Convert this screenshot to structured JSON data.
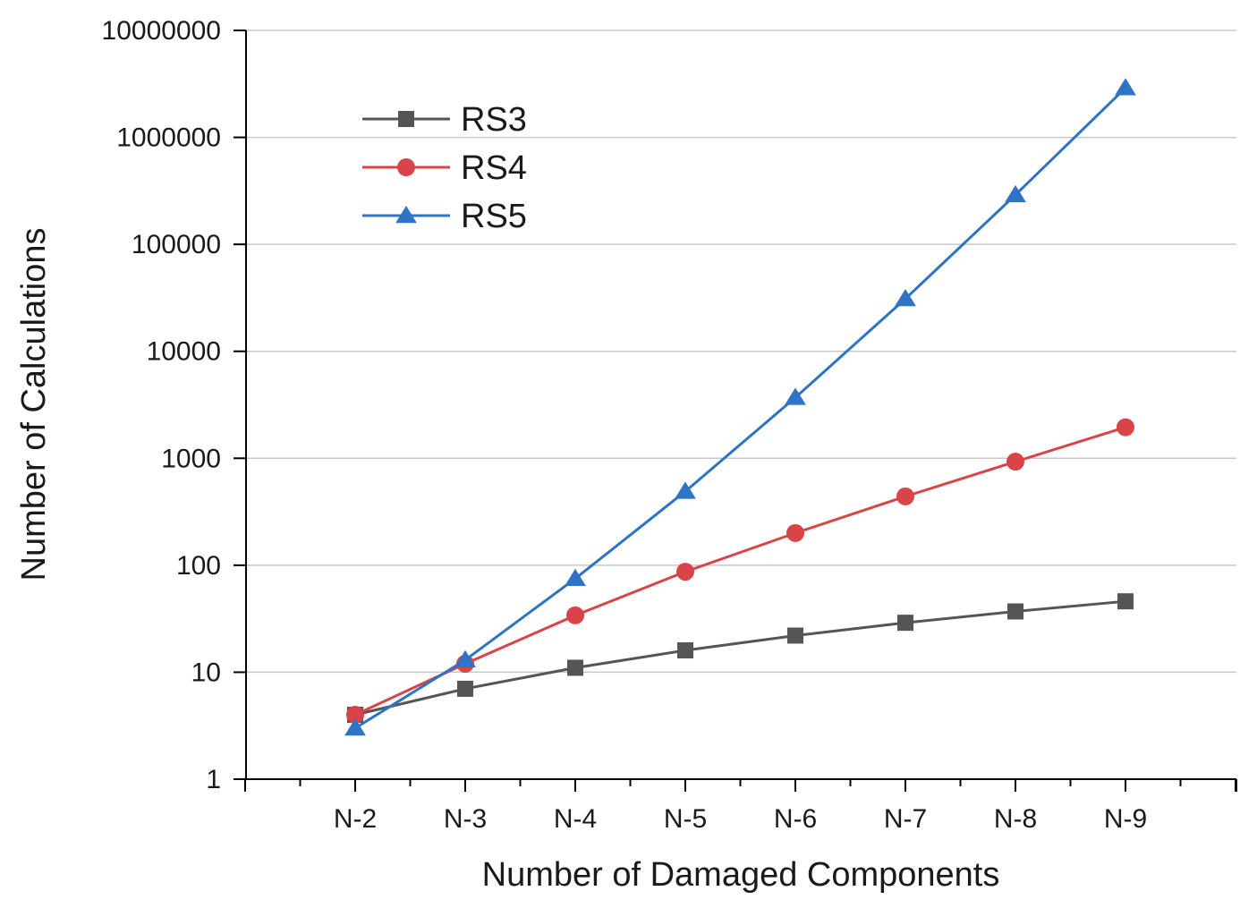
{
  "chart_data": {
    "type": "line",
    "title": "",
    "xlabel": "Number of Damaged Components",
    "ylabel": "Number of Calculations",
    "yscale": "log",
    "ylim": [
      1,
      10000000
    ],
    "grid": true,
    "legend_position": "top-left",
    "categories": [
      "N-2",
      "N-3",
      "N-4",
      "N-5",
      "N-6",
      "N-7",
      "N-8",
      "N-9"
    ],
    "y_ticks": [
      1,
      10,
      100,
      1000,
      10000,
      100000,
      1000000,
      10000000
    ],
    "y_tick_labels": [
      "1",
      "10",
      "100",
      "1000",
      "10000",
      "100000",
      "1000000",
      "10000000"
    ],
    "series": [
      {
        "name": "RS3",
        "color": "#555555",
        "marker": "square",
        "values": [
          4,
          7,
          11,
          16,
          22,
          29,
          37,
          46
        ]
      },
      {
        "name": "RS4",
        "color": "#d94448",
        "marker": "circle",
        "values": [
          4,
          12,
          34,
          87,
          200,
          440,
          930,
          1950
        ]
      },
      {
        "name": "RS5",
        "color": "#2f73c4",
        "marker": "triangle",
        "values": [
          3,
          13,
          75,
          490,
          3700,
          31000,
          290000,
          2900000
        ]
      }
    ]
  }
}
